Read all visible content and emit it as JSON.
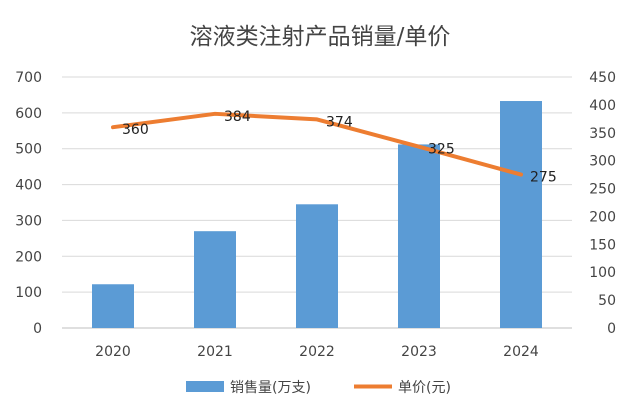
{
  "chart_data": {
    "type": "bar",
    "title": "溶液类注射产品销量/单价",
    "categories": [
      "2020",
      "2021",
      "2022",
      "2023",
      "2024"
    ],
    "series": [
      {
        "name": "销售量(万支)",
        "type": "bar",
        "axis": "left",
        "color": "#5B9BD5",
        "values": [
          122,
          270,
          345,
          512,
          633
        ]
      },
      {
        "name": "单价(元)",
        "type": "line",
        "axis": "right",
        "color": "#ED7D31",
        "values": [
          360,
          384,
          374,
          325,
          275
        ],
        "data_labels": [
          "360",
          "384",
          "374",
          "325",
          "275"
        ]
      }
    ],
    "y_left": {
      "range": [
        0,
        700
      ],
      "ticks": [
        "0",
        "100",
        "200",
        "300",
        "400",
        "500",
        "600",
        "700"
      ]
    },
    "y_right": {
      "range": [
        0,
        450
      ],
      "ticks": [
        "0",
        "50",
        "100",
        "150",
        "200",
        "250",
        "300",
        "350",
        "400",
        "450"
      ]
    },
    "grid": true,
    "legend_position": "bottom"
  }
}
